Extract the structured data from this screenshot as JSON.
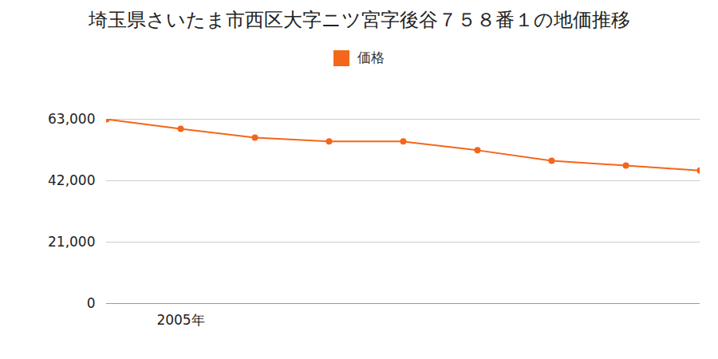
{
  "chart_data": {
    "type": "line",
    "title": "埼玉県さいたま市西区大字ニツ宮字後谷７５８番１の地価推移",
    "categories": [
      null,
      "2005年",
      null,
      null,
      null,
      null,
      null,
      null,
      null
    ],
    "series": [
      {
        "name": "価格",
        "color": "#f4661b",
        "marker": "circle",
        "values": [
          63000,
          59700,
          56700,
          55400,
          55400,
          52400,
          48800,
          47200,
          45500
        ]
      }
    ],
    "ylim": [
      0,
      63000
    ],
    "yticks": [
      0,
      {
        "value": 21000,
        "label": "21,000"
      },
      {
        "value": 42000,
        "label": "42,000"
      },
      {
        "value": 63000,
        "label": "63,000"
      }
    ],
    "grid": true,
    "legend": "top"
  }
}
